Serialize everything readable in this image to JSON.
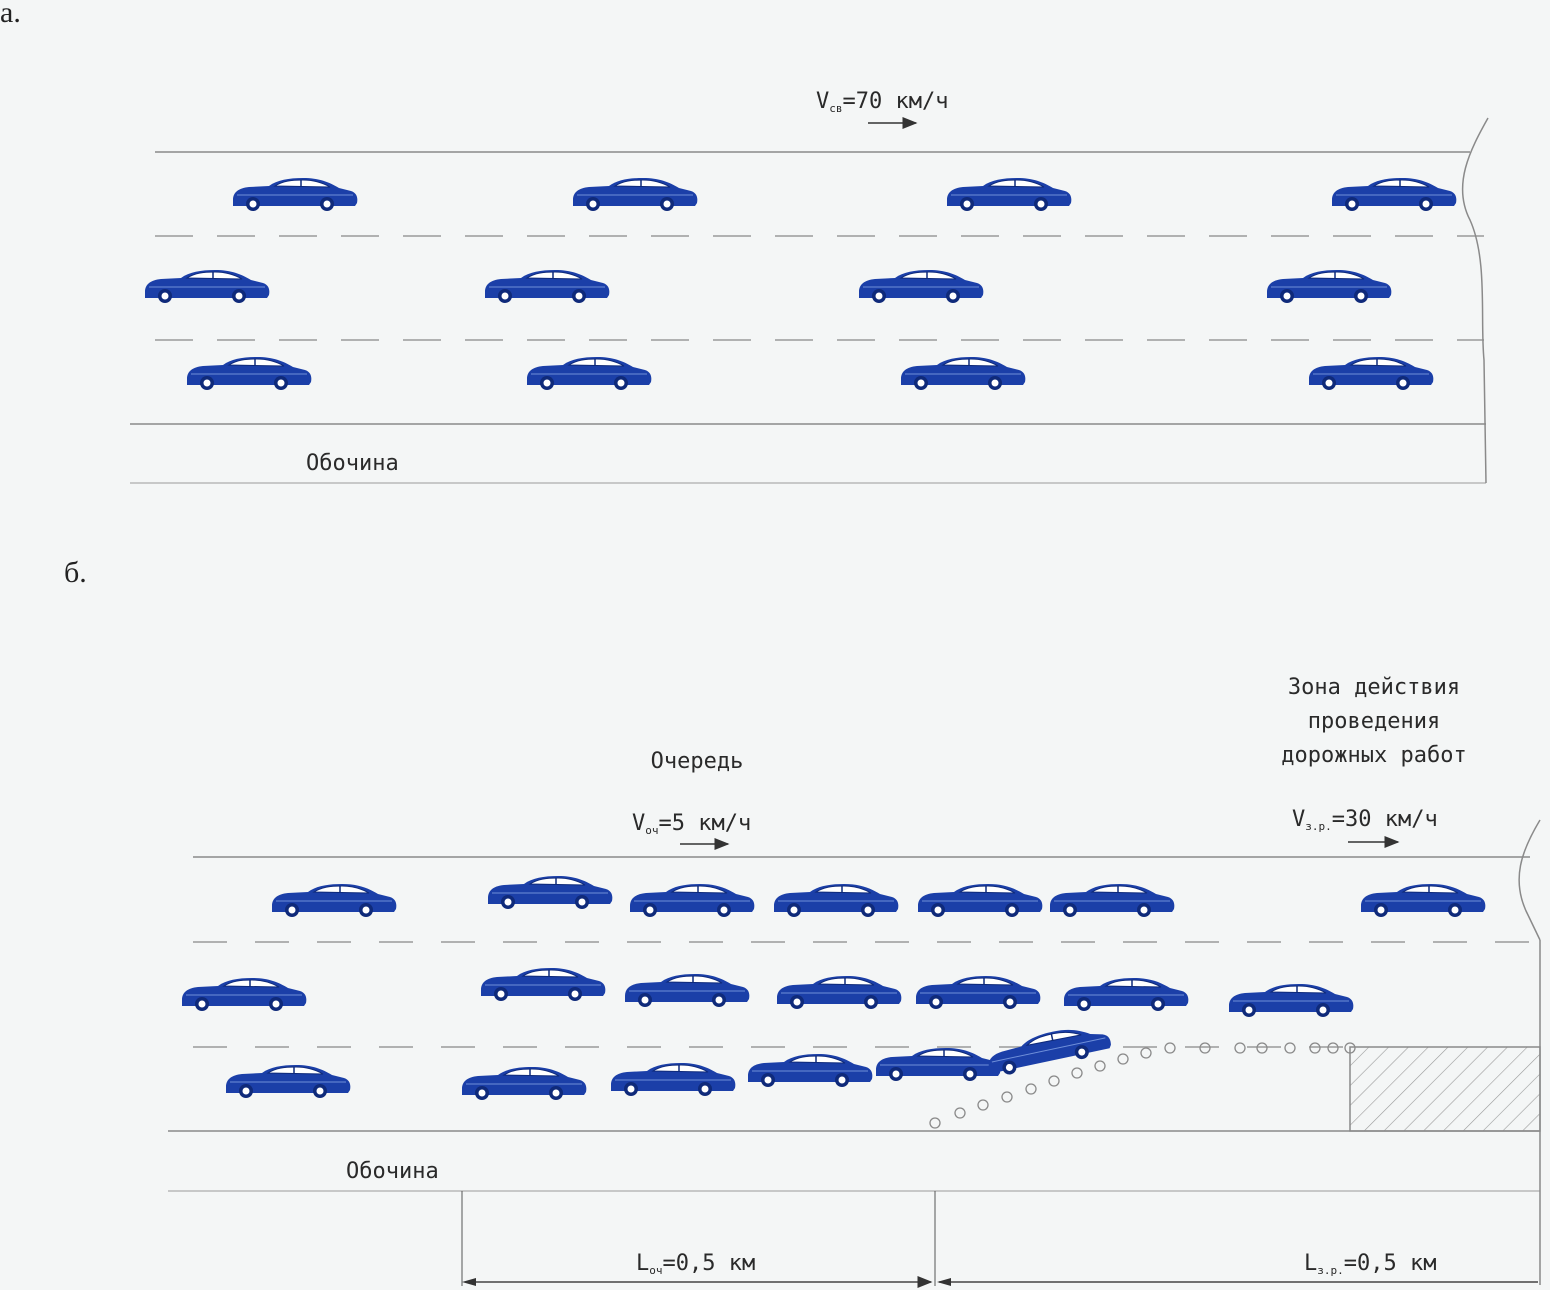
{
  "panel_a": {
    "label": "а.",
    "speed": {
      "prefix": "V",
      "sub": "св",
      "value": "=70 км/ч"
    },
    "shoulder": "Обочина"
  },
  "panel_b": {
    "label": "б.",
    "queue_title": "Очередь",
    "queue_speed": {
      "prefix": "V",
      "sub": "оч",
      "value": "=5 км/ч"
    },
    "zone_title": [
      "Зона действия",
      "проведения",
      "дорожных работ"
    ],
    "zone_speed": {
      "prefix": "V",
      "sub": "з.р.",
      "value": "=30 км/ч"
    },
    "shoulder": "Обочина",
    "queue_length": {
      "prefix": "L",
      "sub": "оч",
      "value": "=0,5 км"
    },
    "zone_length": {
      "prefix": "L",
      "sub": "з.р.",
      "value": "=0,5 км"
    }
  },
  "colors": {
    "car": "#1b3fa8",
    "car_dark": "#0f2a7a",
    "line": "#8a8a8a",
    "hatch": "#9a9a9a"
  }
}
